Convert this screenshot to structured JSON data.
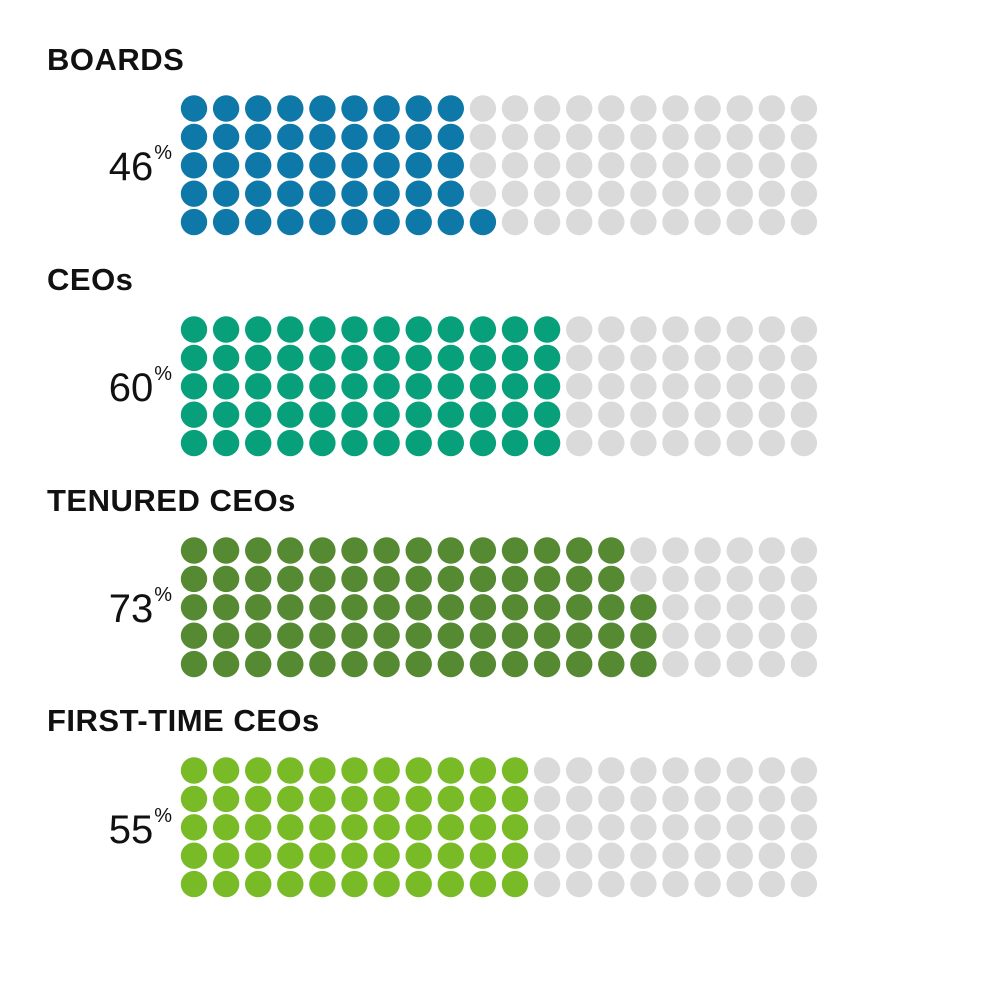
{
  "chart_data": [
    {
      "type": "waffle",
      "title": "BOARDS",
      "value_label": "46",
      "unit": "%",
      "value": 46,
      "total": 100,
      "rows": 5,
      "cols": 20,
      "fill_order": "column-major-bottom-to-top",
      "color": "#0e78a8",
      "empty_color": "#dadada"
    },
    {
      "type": "waffle",
      "title": "CEOs",
      "value_label": "60",
      "unit": "%",
      "value": 60,
      "total": 100,
      "rows": 5,
      "cols": 20,
      "fill_order": "column-major-bottom-to-top",
      "color": "#07a07a",
      "empty_color": "#dadada"
    },
    {
      "type": "waffle",
      "title": "TENURED CEOs",
      "value_label": "73",
      "unit": "%",
      "value": 73,
      "total": 100,
      "rows": 5,
      "cols": 20,
      "fill_order": "column-major-bottom-to-top",
      "color": "#568a32",
      "empty_color": "#dadada"
    },
    {
      "type": "waffle",
      "title": "FIRST-TIME CEOs",
      "value_label": "55",
      "unit": "%",
      "value": 55,
      "total": 100,
      "rows": 5,
      "cols": 20,
      "fill_order": "column-major-bottom-to-top",
      "color": "#79bb27",
      "empty_color": "#dadada"
    }
  ]
}
